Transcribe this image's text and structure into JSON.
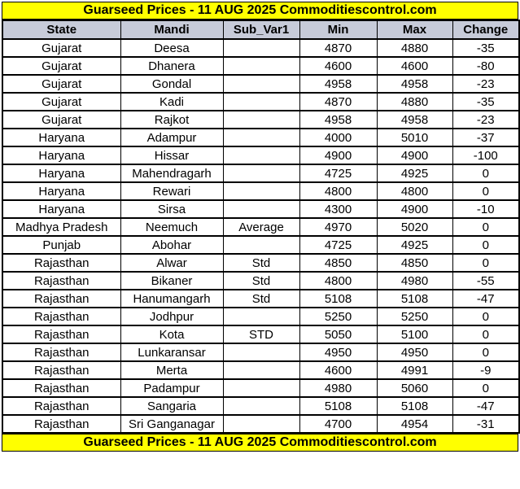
{
  "banner": {
    "title": "Guarseed Prices - 11 AUG 2025 Commoditiescontrol.com",
    "background": "#FFFF00",
    "text_color": "#000000"
  },
  "footer": {
    "title": "Guarseed Prices - 11 AUG 2025 Commoditiescontrol.com",
    "background": "#FFFF00",
    "text_color": "#000000"
  },
  "chart_data": {
    "type": "table",
    "title": "Guarseed Prices - 11 AUG 2025 Commoditiescontrol.com",
    "columns": [
      "State",
      "Mandi",
      "Sub_Var1",
      "Min",
      "Max",
      "Change"
    ],
    "header_background": "#C7CBD9",
    "row_background": "#FFFFFF",
    "border_color": "#000000",
    "rows": [
      [
        "Gujarat",
        "Deesa",
        "",
        4870,
        4880,
        -35
      ],
      [
        "Gujarat",
        "Dhanera",
        "",
        4600,
        4600,
        -80
      ],
      [
        "Gujarat",
        "Gondal",
        "",
        4958,
        4958,
        -23
      ],
      [
        "Gujarat",
        "Kadi",
        "",
        4870,
        4880,
        -35
      ],
      [
        "Gujarat",
        "Rajkot",
        "",
        4958,
        4958,
        -23
      ],
      [
        "Haryana",
        "Adampur",
        "",
        4000,
        5010,
        -37
      ],
      [
        "Haryana",
        "Hissar",
        "",
        4900,
        4900,
        -100
      ],
      [
        "Haryana",
        "Mahendragarh",
        "",
        4725,
        4925,
        0
      ],
      [
        "Haryana",
        "Rewari",
        "",
        4800,
        4800,
        0
      ],
      [
        "Haryana",
        "Sirsa",
        "",
        4300,
        4900,
        -10
      ],
      [
        "Madhya Pradesh",
        "Neemuch",
        "Average",
        4970,
        5020,
        0
      ],
      [
        "Punjab",
        "Abohar",
        "",
        4725,
        4925,
        0
      ],
      [
        "Rajasthan",
        "Alwar",
        "Std",
        4850,
        4850,
        0
      ],
      [
        "Rajasthan",
        "Bikaner",
        "Std",
        4800,
        4980,
        -55
      ],
      [
        "Rajasthan",
        "Hanumangarh",
        "Std",
        5108,
        5108,
        -47
      ],
      [
        "Rajasthan",
        "Jodhpur",
        "",
        5250,
        5250,
        0
      ],
      [
        "Rajasthan",
        "Kota",
        "STD",
        5050,
        5100,
        0
      ],
      [
        "Rajasthan",
        "Lunkaransar",
        "",
        4950,
        4950,
        0
      ],
      [
        "Rajasthan",
        "Merta",
        "",
        4600,
        4991,
        -9
      ],
      [
        "Rajasthan",
        "Padampur",
        "",
        4980,
        5060,
        0
      ],
      [
        "Rajasthan",
        "Sangaria",
        "",
        5108,
        5108,
        -47
      ],
      [
        "Rajasthan",
        "Sri Ganganagar",
        "",
        4700,
        4954,
        -31
      ]
    ]
  }
}
